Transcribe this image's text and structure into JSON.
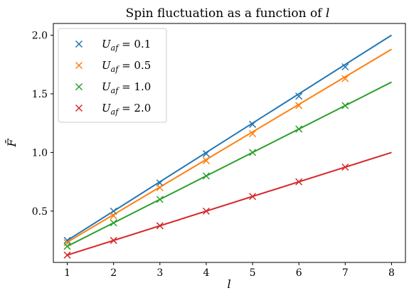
{
  "chart_data": {
    "type": "scatter",
    "title": "Spin fluctuation as a function of l",
    "title_parts": {
      "main": "Spin fluctuation as a function of ",
      "var": "l"
    },
    "xlabel": "l",
    "ylabel": "F̄",
    "xlim": [
      0.7,
      8.3
    ],
    "ylim": [
      0.0625,
      2.1
    ],
    "x_ticks": [
      "1",
      "2",
      "3",
      "4",
      "5",
      "6",
      "7",
      "8"
    ],
    "y_ticks": [
      "0.5",
      "1.0",
      "1.5",
      "2.0"
    ],
    "x_tick_values": [
      1,
      2,
      3,
      4,
      5,
      6,
      7,
      8
    ],
    "y_tick_values": [
      0.5,
      1.0,
      1.5,
      2.0
    ],
    "grid": false,
    "legend_position": "top-left",
    "marker": "x",
    "x": [
      1,
      2,
      3,
      4,
      5,
      6,
      7
    ],
    "fit_x_range": [
      1,
      8
    ],
    "series": [
      {
        "name": "U_af = 0.1",
        "label_sub": "af",
        "label_val": "0.1",
        "color": "#1f77b4",
        "slope": 0.25,
        "values": [
          0.25,
          0.5,
          0.74,
          0.99,
          1.24,
          1.48,
          1.73
        ]
      },
      {
        "name": "U_af = 0.5",
        "label_sub": "af",
        "label_val": "0.5",
        "color": "#ff7f0e",
        "slope": 0.235,
        "values": [
          0.23,
          0.46,
          0.7,
          0.93,
          1.16,
          1.4,
          1.63
        ]
      },
      {
        "name": "U_af = 1.0",
        "label_sub": "af",
        "label_val": "1.0",
        "color": "#2ca02c",
        "slope": 0.2,
        "values": [
          0.2,
          0.4,
          0.6,
          0.8,
          1.0,
          1.2,
          1.4
        ]
      },
      {
        "name": "U_af = 2.0",
        "label_sub": "af",
        "label_val": "2.0",
        "color": "#d62728",
        "slope": 0.125,
        "values": [
          0.125,
          0.25,
          0.375,
          0.5,
          0.625,
          0.75,
          0.875
        ]
      }
    ]
  }
}
